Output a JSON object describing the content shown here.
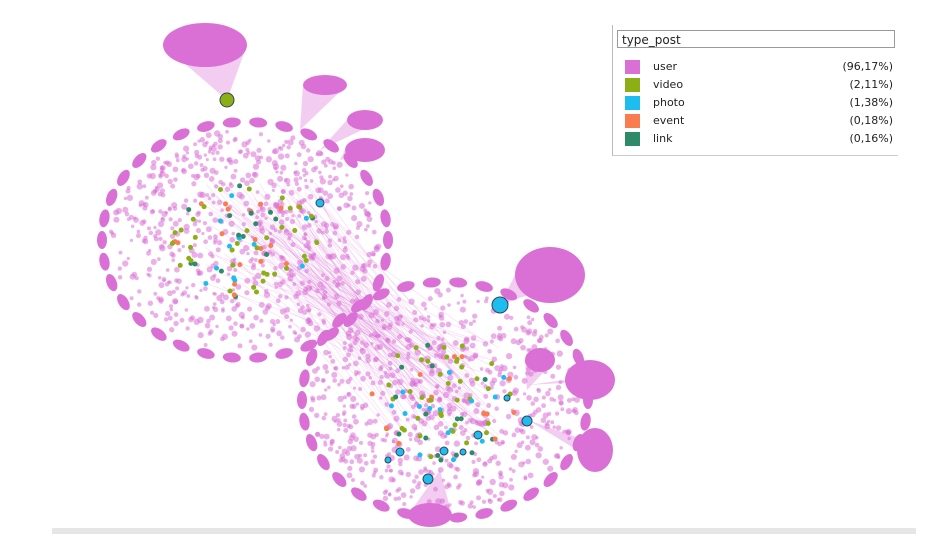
{
  "legend": {
    "title": "type_post",
    "items": [
      {
        "label": "user",
        "share": "(96,17%)",
        "color": "#da70d6"
      },
      {
        "label": "video",
        "share": "(2,11%)",
        "color": "#8caf16"
      },
      {
        "label": "photo",
        "share": "(1,38%)",
        "color": "#1ebdf0"
      },
      {
        "label": "event",
        "share": "(0,18%)",
        "color": "#f97d4e"
      },
      {
        "label": "link",
        "share": "(0,16%)",
        "color": "#2e8b6a"
      }
    ]
  }
}
